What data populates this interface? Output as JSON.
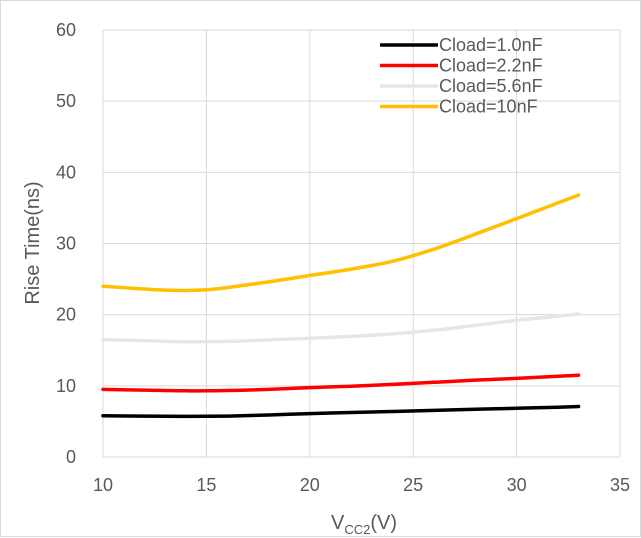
{
  "chart_data": {
    "type": "line",
    "xlabel_main": "V",
    "xlabel_sub": "CC2",
    "xlabel_tail": "(V)",
    "ylabel": "Rise Time(ns)",
    "xlim": [
      10,
      35
    ],
    "ylim": [
      0,
      60
    ],
    "x_ticks": [
      10,
      15,
      20,
      25,
      30,
      35
    ],
    "y_ticks": [
      0,
      10,
      20,
      30,
      40,
      50,
      60
    ],
    "grid": true,
    "legend_position": "top-right",
    "series": [
      {
        "name": "Cload=1.0nF",
        "color": "#000000",
        "x": [
          10,
          12,
          14,
          16,
          18,
          20,
          22,
          24,
          26,
          28,
          30,
          32,
          33
        ],
        "y": [
          5.8,
          5.75,
          5.7,
          5.75,
          5.9,
          6.1,
          6.25,
          6.4,
          6.55,
          6.7,
          6.85,
          7.0,
          7.1
        ]
      },
      {
        "name": "Cload=2.2nF",
        "color": "#ff0000",
        "x": [
          10,
          12,
          14,
          16,
          18,
          20,
          22,
          24,
          26,
          28,
          30,
          32,
          33
        ],
        "y": [
          9.5,
          9.4,
          9.3,
          9.35,
          9.5,
          9.75,
          9.95,
          10.2,
          10.5,
          10.8,
          11.05,
          11.35,
          11.5
        ]
      },
      {
        "name": "Cload=5.6nF",
        "color": "#e6e6e6",
        "x": [
          10,
          12,
          14,
          16,
          18,
          20,
          22,
          24,
          26,
          28,
          30,
          32,
          33
        ],
        "y": [
          16.5,
          16.35,
          16.2,
          16.25,
          16.45,
          16.7,
          16.95,
          17.3,
          17.8,
          18.5,
          19.2,
          19.8,
          20.1
        ]
      },
      {
        "name": "Cload=10nF",
        "color": "#ffc000",
        "x": [
          10,
          11,
          12,
          13,
          14,
          15,
          16,
          18,
          20,
          22,
          24,
          26,
          28,
          30,
          32,
          33
        ],
        "y": [
          24.0,
          23.8,
          23.6,
          23.45,
          23.4,
          23.5,
          23.8,
          24.6,
          25.5,
          26.4,
          27.5,
          29.2,
          31.3,
          33.5,
          35.7,
          36.8
        ]
      }
    ]
  }
}
